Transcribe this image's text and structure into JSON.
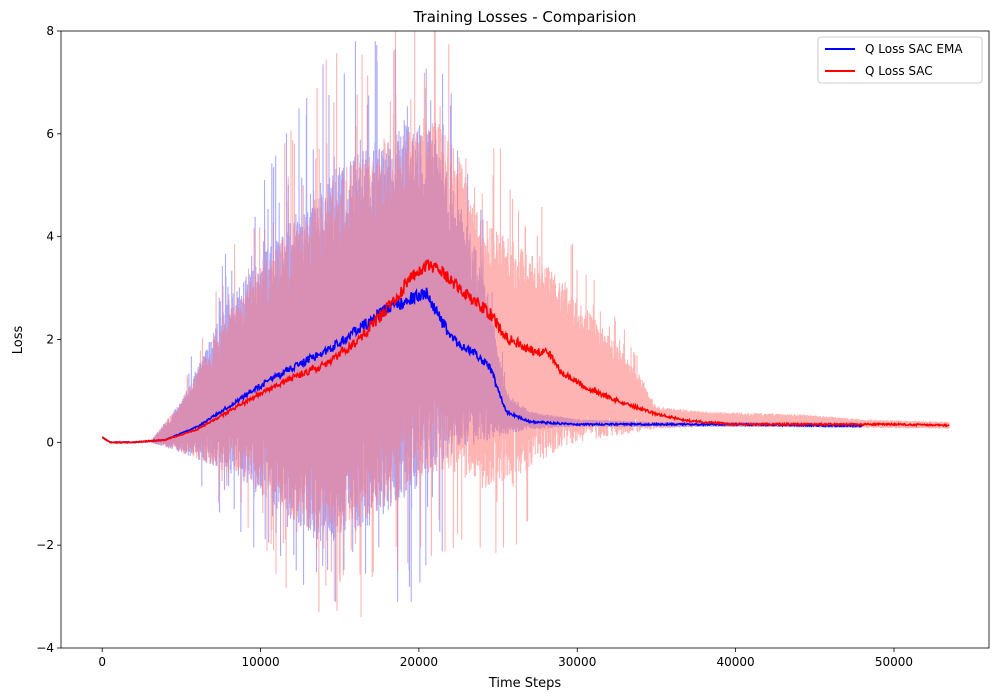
{
  "chart_data": {
    "type": "line",
    "title": "Training Losses - Comparision",
    "xlabel": "Time Steps",
    "ylabel": "Loss",
    "xlim": [
      -2600,
      56000
    ],
    "ylim": [
      -4,
      8
    ],
    "xticks": [
      0,
      10000,
      20000,
      30000,
      40000,
      50000
    ],
    "yticks": [
      -4,
      -2,
      0,
      2,
      4,
      6,
      8
    ],
    "ytick_labels": [
      "−4",
      "−2",
      "0",
      "2",
      "4",
      "6",
      "8"
    ],
    "legend_position": "top-right",
    "grid": false,
    "series": [
      {
        "name": "Q Loss SAC EMA",
        "color": "#0000ff",
        "band_color": "#6666ff",
        "x_max": 48000,
        "ema_x": [
          0,
          500,
          2000,
          4000,
          6000,
          8000,
          10000,
          12000,
          14000,
          16000,
          18000,
          19500,
          20500,
          21500,
          22500,
          23500,
          24500,
          25500,
          27000,
          30000,
          35000,
          40000,
          45000,
          48000
        ],
        "ema_y": [
          0.1,
          0.0,
          0.0,
          0.05,
          0.3,
          0.7,
          1.1,
          1.45,
          1.75,
          2.15,
          2.6,
          2.8,
          2.9,
          2.3,
          1.9,
          1.75,
          1.45,
          0.6,
          0.4,
          0.35,
          0.35,
          0.35,
          0.33,
          0.32
        ],
        "env_x": [
          0,
          3000,
          5000,
          8000,
          10000,
          12000,
          14000,
          16000,
          18000,
          19500,
          21000,
          22500,
          24000,
          25500,
          27000,
          30000,
          35000,
          40000,
          48000
        ],
        "env_upper": [
          0.0,
          0.0,
          0.8,
          2.8,
          3.6,
          4.4,
          5.2,
          5.6,
          6.0,
          6.4,
          6.0,
          4.6,
          3.5,
          1.0,
          0.6,
          0.45,
          0.4,
          0.4,
          0.38
        ],
        "env_lower": [
          0.0,
          0.0,
          -0.2,
          -0.6,
          -1.0,
          -1.6,
          -2.0,
          -1.8,
          -1.4,
          -1.0,
          -0.5,
          -0.2,
          0.0,
          0.15,
          0.25,
          0.3,
          0.3,
          0.3,
          0.28
        ],
        "spike_max": 7.8,
        "spike_min": -3.1
      },
      {
        "name": "Q Loss SAC",
        "color": "#ff0000",
        "band_color": "#ff7777",
        "x_max": 53500,
        "ema_x": [
          0,
          500,
          2000,
          4000,
          6000,
          8000,
          10000,
          12000,
          14000,
          16000,
          18000,
          19500,
          20500,
          21500,
          22500,
          23500,
          24500,
          25500,
          27000,
          28200,
          29000,
          31000,
          33000,
          35000,
          37000,
          40000,
          45000,
          50000,
          53500
        ],
        "ema_y": [
          0.1,
          0.0,
          0.0,
          0.05,
          0.25,
          0.6,
          0.95,
          1.25,
          1.5,
          1.95,
          2.6,
          3.2,
          3.45,
          3.3,
          3.0,
          2.75,
          2.5,
          2.05,
          1.8,
          1.75,
          1.35,
          1.0,
          0.75,
          0.55,
          0.42,
          0.35,
          0.35,
          0.35,
          0.33
        ],
        "env_x": [
          0,
          3000,
          5000,
          8000,
          10000,
          12000,
          14000,
          16000,
          18000,
          19500,
          21000,
          22500,
          24000,
          26000,
          28000,
          30000,
          32000,
          34000,
          35000,
          38000,
          44000,
          48000,
          53500
        ],
        "env_upper": [
          0.0,
          0.0,
          0.8,
          2.6,
          3.4,
          4.2,
          5.0,
          5.5,
          5.9,
          6.2,
          6.4,
          5.6,
          4.3,
          3.9,
          3.5,
          2.8,
          2.1,
          1.3,
          0.7,
          0.6,
          0.55,
          0.45,
          0.4
        ],
        "env_lower": [
          0.0,
          0.0,
          -0.2,
          -0.6,
          -1.0,
          -1.5,
          -1.9,
          -1.7,
          -1.3,
          -0.9,
          -0.6,
          -0.6,
          -0.9,
          -0.7,
          -0.3,
          0.0,
          0.1,
          0.2,
          0.25,
          0.3,
          0.3,
          0.28,
          0.26
        ],
        "spike_max": 8.0,
        "spike_min": -3.4
      }
    ]
  }
}
